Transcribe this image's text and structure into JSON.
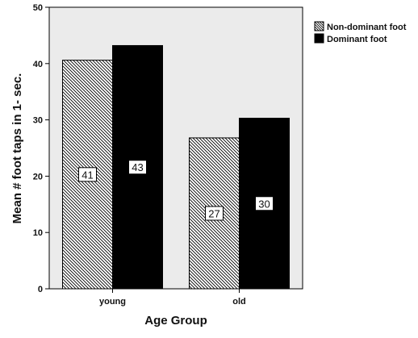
{
  "chart_data": {
    "type": "bar",
    "categories": [
      "young",
      "old"
    ],
    "series": [
      {
        "name": "Non-dominant foot",
        "values": [
          40.6,
          26.8
        ],
        "labels": [
          "41",
          "27"
        ],
        "pattern": "hatch"
      },
      {
        "name": "Dominant foot",
        "values": [
          43.2,
          30.3
        ],
        "labels": [
          "43",
          "30"
        ],
        "pattern": "solid"
      }
    ],
    "xlabel": "Age Group",
    "ylabel": "Mean # foot taps in 1- sec.",
    "ylim": [
      0,
      50
    ],
    "yticks": [
      "0",
      "10",
      "20",
      "30",
      "40",
      "50"
    ],
    "grid": false,
    "legend_position": "top-right",
    "colors": {
      "plot_background": "#ebebeb",
      "solid_bar": "#000000",
      "hatch_line": "#000000",
      "hatch_background": "#ffffff",
      "label_box": "#ffffff"
    }
  }
}
